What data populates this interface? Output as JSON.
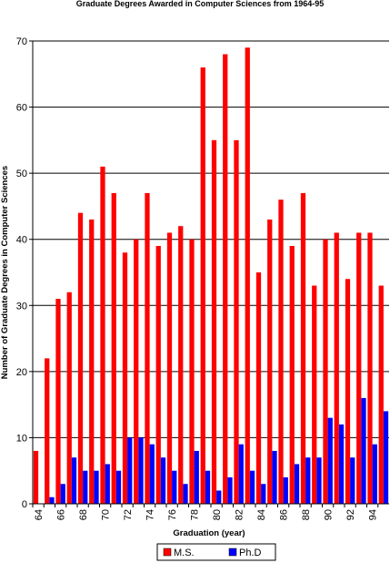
{
  "chart_data": {
    "type": "bar",
    "title": "Graduate Degrees Awarded in Computer Sciences from 1964-95",
    "xlabel": "Graduation (year)",
    "ylabel": "Number of Graduate Degrees in Computer Sciences",
    "ylim": [
      0,
      70
    ],
    "yticks": [
      0,
      10,
      20,
      30,
      40,
      50,
      60,
      70
    ],
    "grid": true,
    "legend_position": "bottom-center",
    "categories": [
      "64",
      "65",
      "66",
      "67",
      "68",
      "69",
      "70",
      "71",
      "72",
      "73",
      "74",
      "75",
      "76",
      "77",
      "78",
      "79",
      "80",
      "81",
      "82",
      "83",
      "84",
      "85",
      "86",
      "87",
      "88",
      "89",
      "90",
      "91",
      "92",
      "93",
      "94",
      "95"
    ],
    "xtick_labels": [
      "64",
      "66",
      "68",
      "70",
      "72",
      "74",
      "76",
      "78",
      "80",
      "82",
      "84",
      "86",
      "88",
      "90",
      "92",
      "94"
    ],
    "series": [
      {
        "name": "M.S.",
        "color": "#ff0000",
        "values": [
          8,
          22,
          31,
          32,
          44,
          43,
          51,
          47,
          38,
          40,
          47,
          39,
          41,
          42,
          40,
          66,
          55,
          68,
          55,
          69,
          35,
          43,
          46,
          39,
          47,
          33,
          40,
          41,
          34,
          41,
          41,
          33
        ]
      },
      {
        "name": "Ph.D",
        "color": "#0000ff",
        "values": [
          0,
          1,
          3,
          7,
          5,
          5,
          6,
          5,
          10,
          10,
          9,
          7,
          5,
          3,
          8,
          5,
          2,
          4,
          9,
          5,
          3,
          8,
          4,
          6,
          7,
          7,
          13,
          12,
          7,
          16,
          9,
          14
        ]
      }
    ]
  }
}
